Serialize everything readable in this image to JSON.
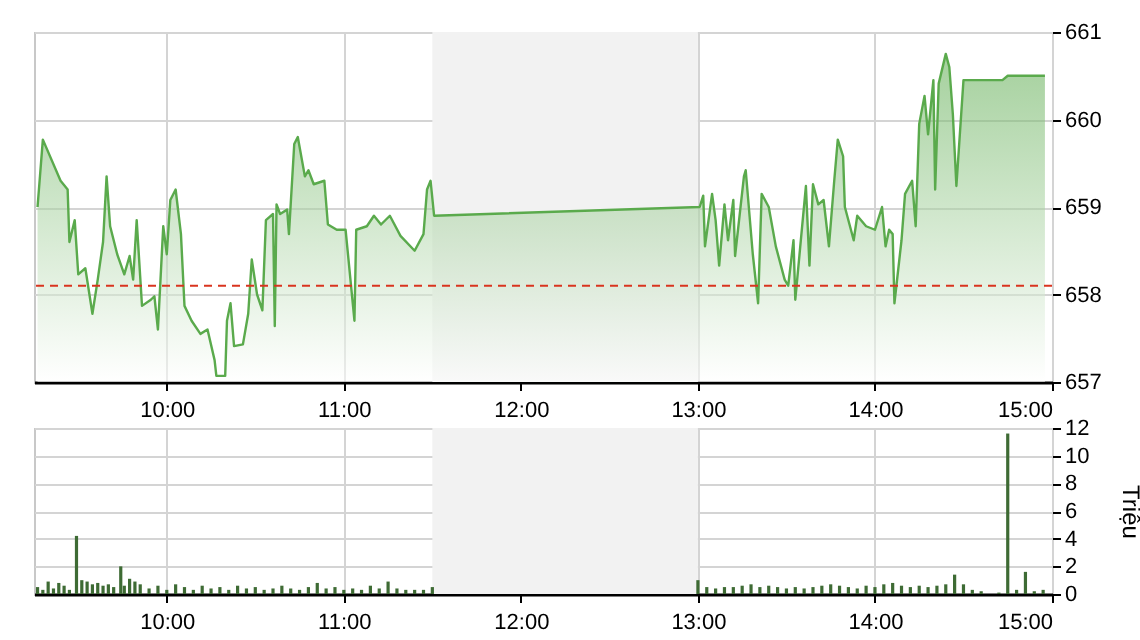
{
  "chart_data": [
    {
      "type": "area",
      "xlim": [
        9.25,
        15
      ],
      "xticks": [
        {
          "value": 10,
          "label": "10:00"
        },
        {
          "value": 11,
          "label": "11:00"
        },
        {
          "value": 12,
          "label": "12:00"
        },
        {
          "value": 13,
          "label": "13:00"
        },
        {
          "value": 14,
          "label": "14:00"
        },
        {
          "value": 15,
          "label": "15:00"
        }
      ],
      "ylim": [
        657,
        661
      ],
      "yticks": [
        657,
        658,
        659,
        660,
        661
      ],
      "grid": true,
      "x": [
        9.27,
        9.3,
        9.4,
        9.44,
        9.45,
        9.48,
        9.5,
        9.54,
        9.58,
        9.61,
        9.64,
        9.66,
        9.68,
        9.72,
        9.76,
        9.79,
        9.81,
        9.83,
        9.86,
        9.91,
        9.93,
        9.95,
        9.98,
        10.0,
        10.02,
        10.05,
        10.08,
        10.1,
        10.14,
        10.19,
        10.23,
        10.27,
        10.28,
        10.33,
        10.34,
        10.36,
        10.38,
        10.43,
        10.46,
        10.48,
        10.51,
        10.54,
        10.56,
        10.6,
        10.61,
        10.62,
        10.64,
        10.68,
        10.69,
        10.72,
        10.74,
        10.78,
        10.8,
        10.83,
        10.89,
        10.91,
        10.96,
        11.01,
        11.06,
        11.07,
        11.13,
        11.17,
        11.21,
        11.26,
        11.32,
        11.4,
        11.45,
        11.47,
        11.49,
        11.51,
        13.01,
        13.03,
        13.04,
        13.08,
        13.1,
        13.12,
        13.15,
        13.17,
        13.2,
        13.21,
        13.26,
        13.27,
        13.31,
        13.34,
        13.36,
        13.4,
        13.44,
        13.49,
        13.51,
        13.54,
        13.55,
        13.61,
        13.63,
        13.65,
        13.68,
        13.71,
        13.74,
        13.77,
        13.79,
        13.82,
        13.83,
        13.88,
        13.9,
        13.95,
        14.0,
        14.04,
        14.06,
        14.08,
        14.1,
        14.11,
        14.15,
        14.17,
        14.21,
        14.23,
        14.25,
        14.28,
        14.3,
        14.33,
        14.34,
        14.36,
        14.4,
        14.42,
        14.44,
        14.46,
        14.5,
        14.72,
        14.75,
        14.96
      ],
      "series": [
        {
          "color": "#5aaa4c",
          "values": [
            659.0,
            659.77,
            659.3,
            659.2,
            658.6,
            658.85,
            658.23,
            658.3,
            657.78,
            658.17,
            658.6,
            659.35,
            658.78,
            658.46,
            658.23,
            658.44,
            658.17,
            658.85,
            657.87,
            657.94,
            657.98,
            657.6,
            658.78,
            658.46,
            659.08,
            659.2,
            658.69,
            657.87,
            657.7,
            657.55,
            657.6,
            657.25,
            657.07,
            657.07,
            657.7,
            657.9,
            657.41,
            657.43,
            657.78,
            658.4,
            658.0,
            657.82,
            658.85,
            658.92,
            657.64,
            659.03,
            658.92,
            658.97,
            658.69,
            659.72,
            659.8,
            659.35,
            659.42,
            659.26,
            659.3,
            658.8,
            658.74,
            658.74,
            657.7,
            658.74,
            658.78,
            658.9,
            658.8,
            658.9,
            658.67,
            658.5,
            658.69,
            659.2,
            659.3,
            658.9,
            659.0,
            659.13,
            658.55,
            659.15,
            658.85,
            658.33,
            659.03,
            658.62,
            659.08,
            658.44,
            659.35,
            659.42,
            658.46,
            657.9,
            659.15,
            659.0,
            658.55,
            658.17,
            658.1,
            658.62,
            657.94,
            659.24,
            658.33,
            659.26,
            659.03,
            659.08,
            658.55,
            659.3,
            659.77,
            659.58,
            659.0,
            658.62,
            658.9,
            658.78,
            658.74,
            659.0,
            658.55,
            658.74,
            658.69,
            657.9,
            658.62,
            659.15,
            659.3,
            658.78,
            659.95,
            660.27,
            659.83,
            660.45,
            659.2,
            660.41,
            660.75,
            660.6,
            660.06,
            659.24,
            660.45,
            660.45,
            660.5,
            660.5
          ]
        }
      ],
      "ref_lines": [
        {
          "axis": "y",
          "value": 658.1,
          "color": "#d9341f",
          "line_style": "dashed"
        }
      ],
      "bands": [
        {
          "axis": "x",
          "from": 11.5,
          "to": 13,
          "color": "#f2f2f2"
        }
      ]
    },
    {
      "type": "bar",
      "xlim": [
        9.25,
        15
      ],
      "xticks": [
        {
          "value": 10,
          "label": "10:00"
        },
        {
          "value": 11,
          "label": "11:00"
        },
        {
          "value": 12,
          "label": "12:00"
        },
        {
          "value": 13,
          "label": "13:00"
        },
        {
          "value": 14,
          "label": "14:00"
        },
        {
          "value": 15,
          "label": "15:00"
        }
      ],
      "ylim": [
        0,
        12
      ],
      "yticks": [
        0,
        2,
        4,
        6,
        8,
        10,
        12
      ],
      "ylabel": "Triệu",
      "grid": true,
      "x": [
        9.27,
        9.3,
        9.33,
        9.36,
        9.39,
        9.42,
        9.45,
        9.49,
        9.52,
        9.55,
        9.58,
        9.61,
        9.64,
        9.67,
        9.7,
        9.74,
        9.76,
        9.79,
        9.82,
        9.85,
        9.9,
        9.95,
        10.0,
        10.05,
        10.1,
        10.15,
        10.2,
        10.25,
        10.3,
        10.35,
        10.4,
        10.45,
        10.5,
        10.55,
        10.6,
        10.65,
        10.7,
        10.75,
        10.8,
        10.85,
        10.9,
        10.95,
        11.0,
        11.05,
        11.1,
        11.15,
        11.2,
        11.25,
        11.3,
        11.35,
        11.4,
        11.45,
        11.5,
        13.0,
        13.05,
        13.1,
        13.15,
        13.2,
        13.25,
        13.3,
        13.35,
        13.4,
        13.45,
        13.5,
        13.55,
        13.6,
        13.65,
        13.7,
        13.75,
        13.8,
        13.85,
        13.9,
        13.95,
        14.0,
        14.05,
        14.1,
        14.15,
        14.2,
        14.25,
        14.3,
        14.35,
        14.4,
        14.45,
        14.5,
        14.55,
        14.6,
        14.7,
        14.75,
        14.8,
        14.85,
        14.9,
        14.95
      ],
      "series": [
        {
          "color": "#3e6b34",
          "values": [
            0.5,
            0.3,
            0.9,
            0.4,
            0.8,
            0.6,
            0.3,
            4.2,
            1.0,
            0.9,
            0.7,
            0.8,
            0.6,
            0.7,
            0.5,
            2.0,
            0.6,
            1.1,
            0.9,
            0.7,
            0.4,
            0.6,
            0.3,
            0.7,
            0.5,
            0.3,
            0.6,
            0.4,
            0.5,
            0.3,
            0.6,
            0.4,
            0.5,
            0.3,
            0.4,
            0.6,
            0.4,
            0.3,
            0.5,
            0.8,
            0.4,
            0.5,
            0.3,
            0.4,
            0.3,
            0.6,
            0.4,
            0.9,
            0.4,
            0.3,
            0.3,
            0.3,
            0.5,
            1.0,
            0.5,
            0.4,
            0.5,
            0.5,
            0.6,
            0.7,
            0.5,
            0.6,
            0.5,
            0.4,
            0.5,
            0.4,
            0.5,
            0.6,
            0.7,
            0.6,
            0.5,
            0.4,
            0.6,
            0.5,
            0.7,
            0.8,
            0.6,
            0.5,
            0.6,
            0.5,
            0.6,
            0.7,
            1.4,
            0.7,
            0.3,
            0.2,
            0.1,
            11.6,
            0.3,
            1.6,
            0.2,
            0.3
          ]
        }
      ],
      "bands": [
        {
          "axis": "x",
          "from": 11.5,
          "to": 13,
          "color": "#f2f2f2"
        }
      ]
    }
  ]
}
